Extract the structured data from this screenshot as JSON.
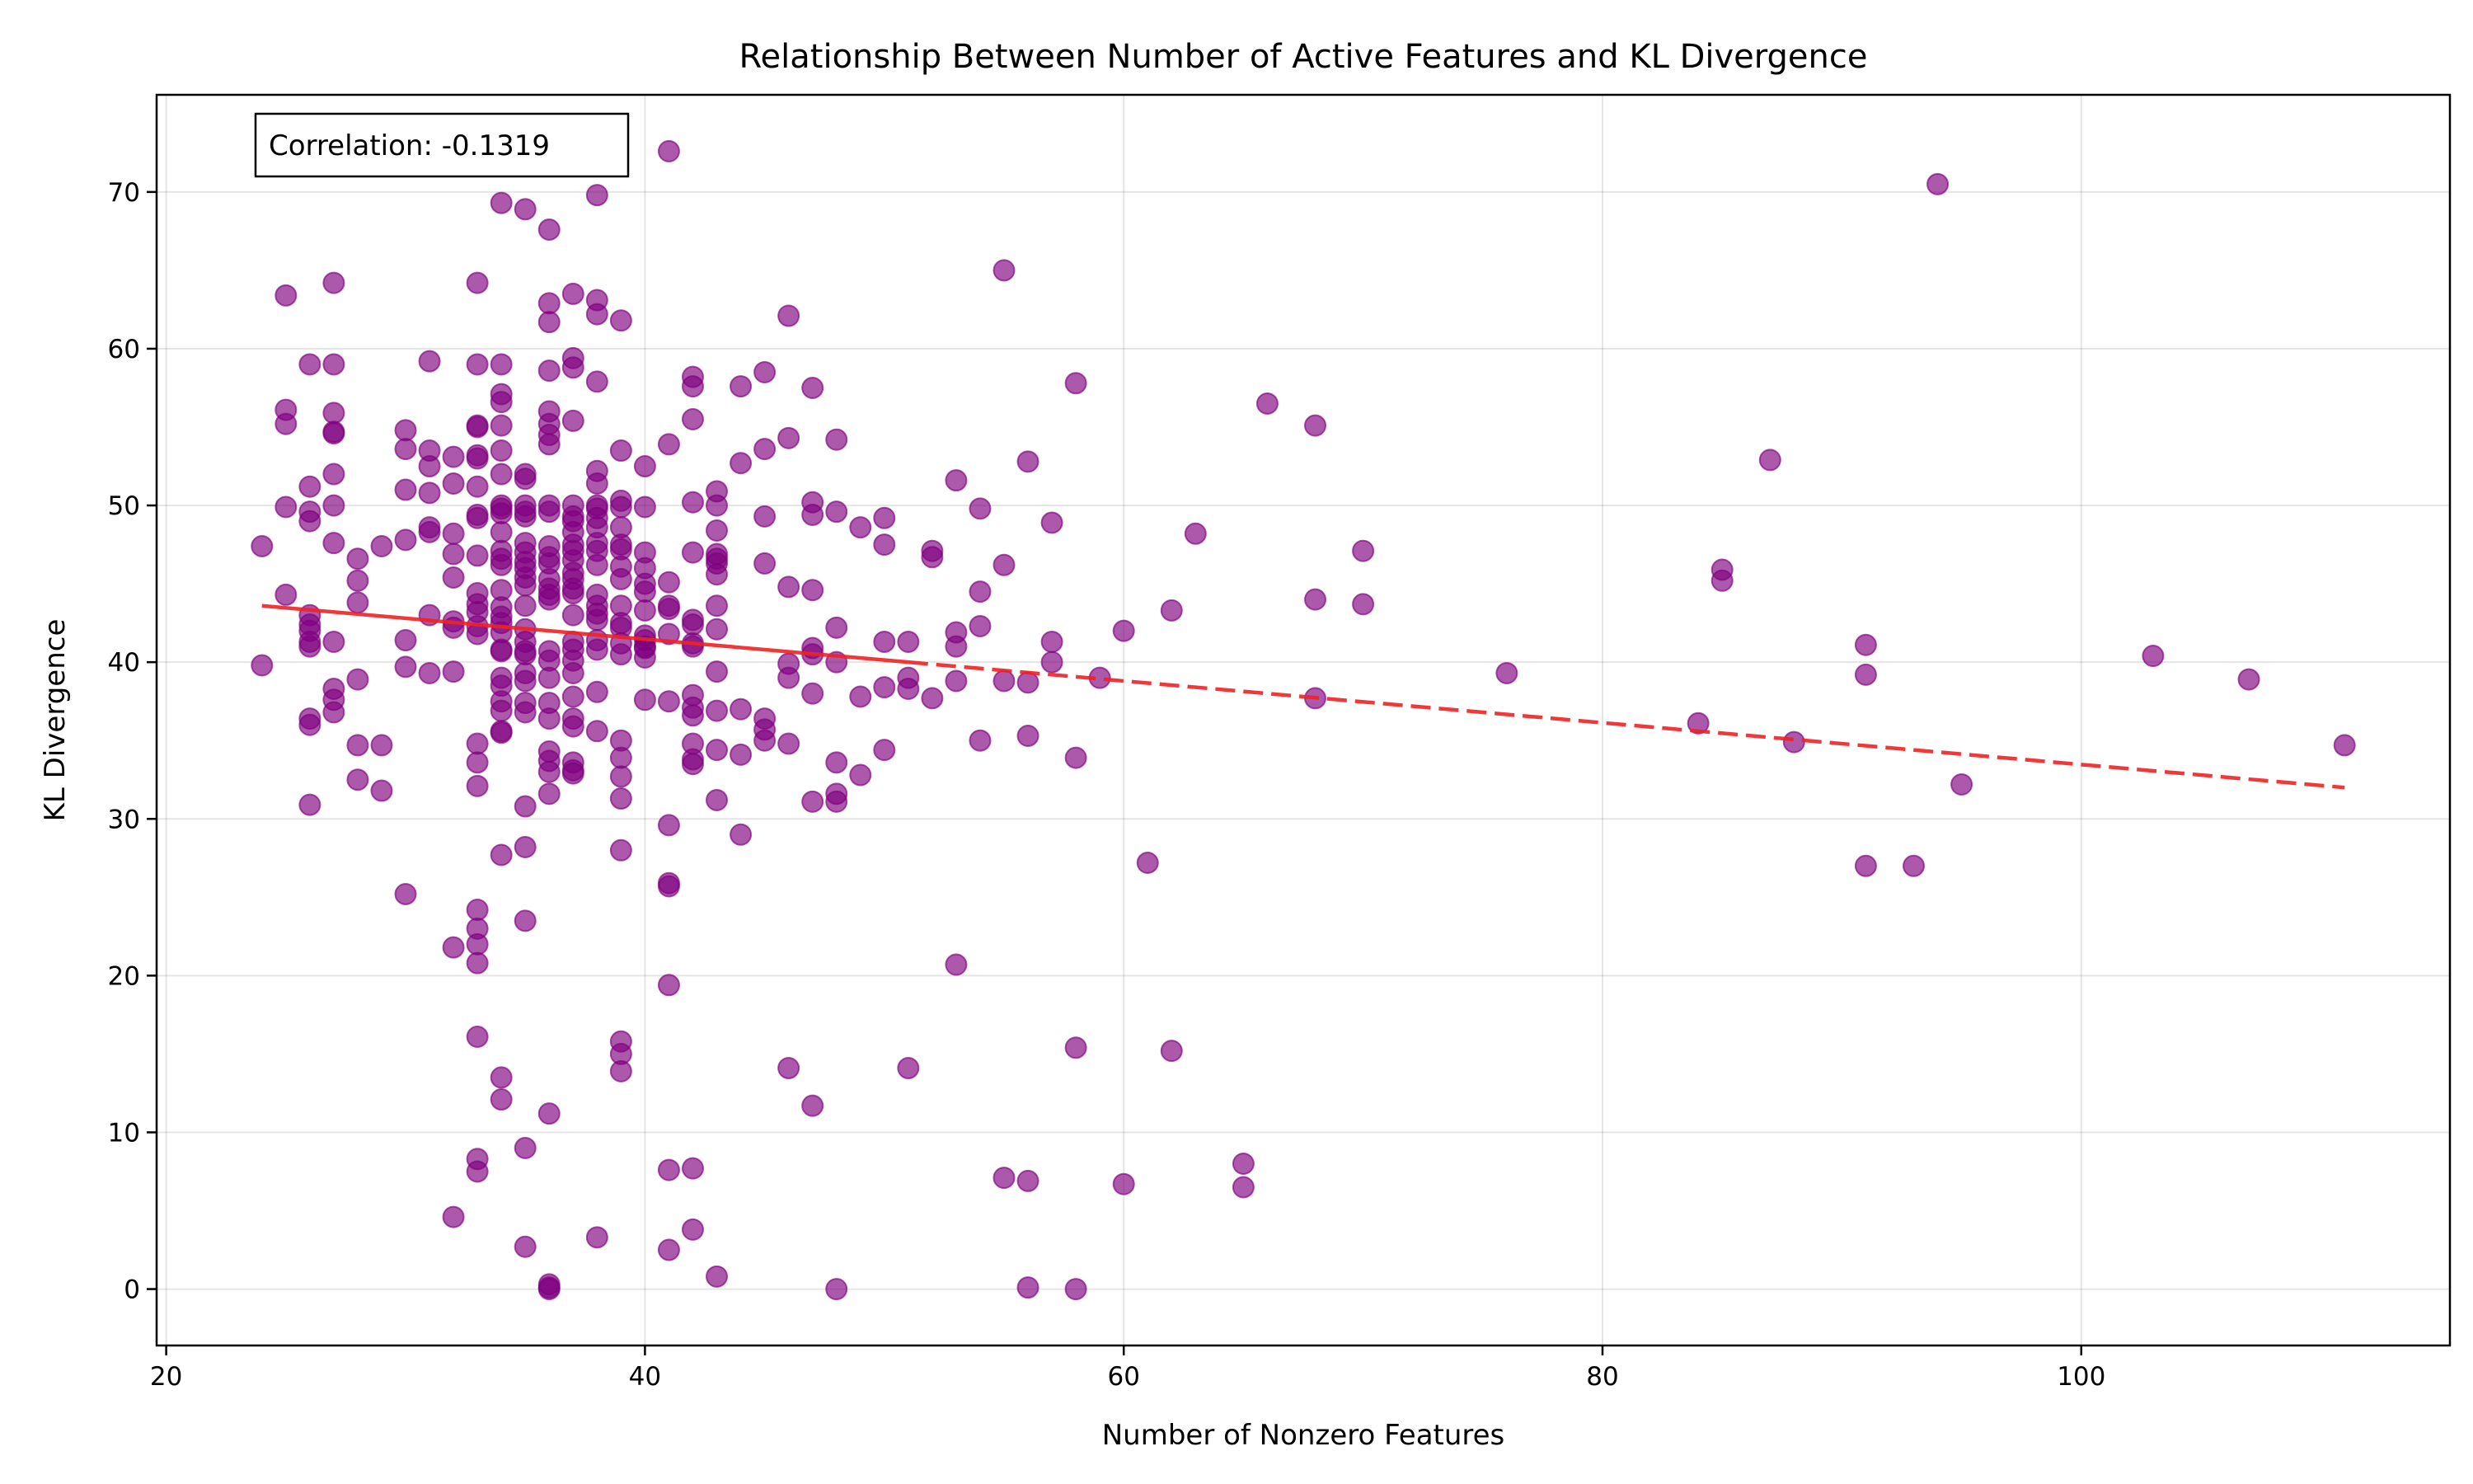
{
  "chart_data": {
    "type": "scatter",
    "title": "Relationship Between Number of Active Features and KL Divergence",
    "xlabel": "Number of Nonzero Features",
    "ylabel": "KL Divergence",
    "xlim": [
      19.6,
      115.4
    ],
    "ylim": [
      -3.6,
      76.2
    ],
    "xticks": [
      20,
      40,
      60,
      80,
      100
    ],
    "yticks": [
      0,
      10,
      20,
      30,
      40,
      50,
      60,
      70
    ],
    "grid": true,
    "annotation": "Correlation: -0.1319",
    "annotation_position": "top-left",
    "point_color": "#800080",
    "point_alpha": 0.65,
    "trend_color": "#ee2222",
    "trend_line": {
      "x": [
        24,
        111
      ],
      "y": [
        43.6,
        32.0
      ],
      "style": "solid from 24 to 51, dashed from 51 to 111",
      "solid_until_x": 51
    },
    "points": [
      [
        24,
        47.4
      ],
      [
        24,
        39.8
      ],
      [
        25,
        63.4
      ],
      [
        25,
        56.1
      ],
      [
        25,
        55.2
      ],
      [
        25,
        49.9
      ],
      [
        25,
        44.3
      ],
      [
        26,
        59.0
      ],
      [
        26,
        51.2
      ],
      [
        26,
        49.6
      ],
      [
        26,
        49.0
      ],
      [
        26,
        43.0
      ],
      [
        26,
        42.4
      ],
      [
        26,
        42.0
      ],
      [
        26,
        41.0
      ],
      [
        26,
        41.3
      ],
      [
        26,
        36.4
      ],
      [
        26,
        36.0
      ],
      [
        26,
        30.9
      ],
      [
        27,
        64.2
      ],
      [
        27,
        59.0
      ],
      [
        27,
        55.9
      ],
      [
        27,
        54.7
      ],
      [
        27,
        54.6
      ],
      [
        27,
        52.0
      ],
      [
        27,
        50.0
      ],
      [
        27,
        47.6
      ],
      [
        27,
        41.3
      ],
      [
        27,
        38.3
      ],
      [
        27,
        37.6
      ],
      [
        27,
        36.8
      ],
      [
        28,
        46.6
      ],
      [
        28,
        45.2
      ],
      [
        28,
        43.8
      ],
      [
        28,
        38.9
      ],
      [
        28,
        34.7
      ],
      [
        28,
        32.5
      ],
      [
        29,
        47.4
      ],
      [
        29,
        34.7
      ],
      [
        29,
        31.8
      ],
      [
        30,
        54.8
      ],
      [
        30,
        53.6
      ],
      [
        30,
        51.0
      ],
      [
        30,
        47.8
      ],
      [
        30,
        41.4
      ],
      [
        30,
        39.7
      ],
      [
        30,
        25.2
      ],
      [
        31,
        59.2
      ],
      [
        31,
        53.5
      ],
      [
        31,
        52.5
      ],
      [
        31,
        50.8
      ],
      [
        31,
        48.6
      ],
      [
        31,
        48.3
      ],
      [
        31,
        43.0
      ],
      [
        31,
        39.3
      ],
      [
        32,
        53.1
      ],
      [
        32,
        51.4
      ],
      [
        32,
        48.2
      ],
      [
        32,
        46.9
      ],
      [
        32,
        45.4
      ],
      [
        32,
        42.6
      ],
      [
        32,
        42.2
      ],
      [
        32,
        39.4
      ],
      [
        32,
        21.8
      ],
      [
        32,
        4.6
      ],
      [
        33,
        64.2
      ],
      [
        33,
        59.0
      ],
      [
        33,
        55.1
      ],
      [
        33,
        55.0
      ],
      [
        33,
        53.2
      ],
      [
        33,
        53.0
      ],
      [
        33,
        51.2
      ],
      [
        33,
        49.4
      ],
      [
        33,
        49.2
      ],
      [
        33,
        46.8
      ],
      [
        33,
        44.4
      ],
      [
        33,
        43.7
      ],
      [
        33,
        43.2
      ],
      [
        33,
        42.3
      ],
      [
        33,
        41.8
      ],
      [
        33,
        34.8
      ],
      [
        33,
        33.6
      ],
      [
        33,
        32.1
      ],
      [
        33,
        24.2
      ],
      [
        33,
        23.0
      ],
      [
        33,
        22.0
      ],
      [
        33,
        20.8
      ],
      [
        33,
        16.1
      ],
      [
        33,
        8.3
      ],
      [
        33,
        7.5
      ],
      [
        34,
        69.3
      ],
      [
        34,
        59.0
      ],
      [
        34,
        57.1
      ],
      [
        34,
        56.6
      ],
      [
        34,
        55.1
      ],
      [
        34,
        53.5
      ],
      [
        34,
        52.0
      ],
      [
        34,
        50.0
      ],
      [
        34,
        49.8
      ],
      [
        34,
        49.5
      ],
      [
        34,
        48.3
      ],
      [
        34,
        47.1
      ],
      [
        34,
        46.6
      ],
      [
        34,
        46.2
      ],
      [
        34,
        44.6
      ],
      [
        34,
        43.5
      ],
      [
        34,
        42.9
      ],
      [
        34,
        42.5
      ],
      [
        34,
        41.9
      ],
      [
        34,
        40.8
      ],
      [
        34,
        40.7
      ],
      [
        34,
        39.0
      ],
      [
        34,
        38.5
      ],
      [
        34,
        37.5
      ],
      [
        34,
        36.9
      ],
      [
        34,
        35.5
      ],
      [
        34,
        35.6
      ],
      [
        34,
        27.7
      ],
      [
        34,
        13.5
      ],
      [
        34,
        12.1
      ],
      [
        35,
        68.9
      ],
      [
        35,
        52.0
      ],
      [
        35,
        51.7
      ],
      [
        35,
        50.0
      ],
      [
        35,
        49.6
      ],
      [
        35,
        49.3
      ],
      [
        35,
        47.6
      ],
      [
        35,
        47.0
      ],
      [
        35,
        46.4
      ],
      [
        35,
        46.0
      ],
      [
        35,
        45.4
      ],
      [
        35,
        44.9
      ],
      [
        35,
        43.6
      ],
      [
        35,
        42.1
      ],
      [
        35,
        41.3
      ],
      [
        35,
        40.7
      ],
      [
        35,
        40.5
      ],
      [
        35,
        39.3
      ],
      [
        35,
        38.8
      ],
      [
        35,
        37.4
      ],
      [
        35,
        36.8
      ],
      [
        35,
        30.8
      ],
      [
        35,
        28.2
      ],
      [
        35,
        23.5
      ],
      [
        35,
        9.0
      ],
      [
        35,
        2.7
      ],
      [
        36,
        67.6
      ],
      [
        36,
        62.9
      ],
      [
        36,
        61.7
      ],
      [
        36,
        58.6
      ],
      [
        36,
        56.0
      ],
      [
        36,
        55.2
      ],
      [
        36,
        54.5
      ],
      [
        36,
        53.9
      ],
      [
        36,
        50.0
      ],
      [
        36,
        49.6
      ],
      [
        36,
        47.4
      ],
      [
        36,
        46.7
      ],
      [
        36,
        46.3
      ],
      [
        36,
        45.3
      ],
      [
        36,
        44.7
      ],
      [
        36,
        44.3
      ],
      [
        36,
        44.0
      ],
      [
        36,
        40.7
      ],
      [
        36,
        40.1
      ],
      [
        36,
        39.0
      ],
      [
        36,
        37.4
      ],
      [
        36,
        36.4
      ],
      [
        36,
        34.3
      ],
      [
        36,
        33.7
      ],
      [
        36,
        33.0
      ],
      [
        36,
        31.6
      ],
      [
        36,
        11.2
      ],
      [
        36,
        0.3
      ],
      [
        36,
        0.1
      ],
      [
        36,
        0.0
      ],
      [
        37,
        63.5
      ],
      [
        37,
        59.4
      ],
      [
        37,
        58.8
      ],
      [
        37,
        55.4
      ],
      [
        37,
        50.0
      ],
      [
        37,
        49.3
      ],
      [
        37,
        49.0
      ],
      [
        37,
        48.3
      ],
      [
        37,
        47.5
      ],
      [
        37,
        47.1
      ],
      [
        37,
        46.5
      ],
      [
        37,
        45.7
      ],
      [
        37,
        45.3
      ],
      [
        37,
        44.7
      ],
      [
        37,
        44.4
      ],
      [
        37,
        43.0
      ],
      [
        37,
        41.3
      ],
      [
        37,
        40.8
      ],
      [
        37,
        40.1
      ],
      [
        37,
        39.3
      ],
      [
        37,
        37.8
      ],
      [
        37,
        36.4
      ],
      [
        37,
        35.9
      ],
      [
        37,
        33.6
      ],
      [
        37,
        33.1
      ],
      [
        37,
        32.9
      ],
      [
        38,
        69.8
      ],
      [
        38,
        63.1
      ],
      [
        38,
        62.2
      ],
      [
        38,
        57.9
      ],
      [
        38,
        52.2
      ],
      [
        38,
        51.4
      ],
      [
        38,
        50.0
      ],
      [
        38,
        49.8
      ],
      [
        38,
        49.2
      ],
      [
        38,
        48.6
      ],
      [
        38,
        47.6
      ],
      [
        38,
        47.1
      ],
      [
        38,
        46.2
      ],
      [
        38,
        44.3
      ],
      [
        38,
        43.6
      ],
      [
        38,
        43.1
      ],
      [
        38,
        42.7
      ],
      [
        38,
        41.4
      ],
      [
        38,
        40.8
      ],
      [
        38,
        38.1
      ],
      [
        38,
        35.6
      ],
      [
        38,
        3.3
      ],
      [
        39,
        61.8
      ],
      [
        39,
        53.5
      ],
      [
        39,
        50.3
      ],
      [
        39,
        49.9
      ],
      [
        39,
        48.6
      ],
      [
        39,
        47.5
      ],
      [
        39,
        47.2
      ],
      [
        39,
        46.1
      ],
      [
        39,
        45.3
      ],
      [
        39,
        43.6
      ],
      [
        39,
        42.5
      ],
      [
        39,
        42.2
      ],
      [
        39,
        41.2
      ],
      [
        39,
        40.5
      ],
      [
        39,
        35.0
      ],
      [
        39,
        33.9
      ],
      [
        39,
        32.7
      ],
      [
        39,
        31.3
      ],
      [
        39,
        28.0
      ],
      [
        39,
        15.8
      ],
      [
        39,
        15.0
      ],
      [
        39,
        13.9
      ],
      [
        40,
        52.5
      ],
      [
        40,
        49.9
      ],
      [
        40,
        47.0
      ],
      [
        40,
        46.0
      ],
      [
        40,
        45.0
      ],
      [
        40,
        44.5
      ],
      [
        40,
        43.3
      ],
      [
        40,
        41.7
      ],
      [
        40,
        41.4
      ],
      [
        40,
        41.0
      ],
      [
        40,
        40.9
      ],
      [
        40,
        40.3
      ],
      [
        40,
        37.6
      ],
      [
        41,
        72.6
      ],
      [
        41,
        53.9
      ],
      [
        41,
        45.1
      ],
      [
        41,
        43.6
      ],
      [
        41,
        43.4
      ],
      [
        41,
        41.8
      ],
      [
        41,
        37.5
      ],
      [
        41,
        29.6
      ],
      [
        41,
        25.9
      ],
      [
        41,
        25.7
      ],
      [
        41,
        19.4
      ],
      [
        41,
        7.6
      ],
      [
        41,
        2.5
      ],
      [
        42,
        58.2
      ],
      [
        42,
        57.6
      ],
      [
        42,
        55.5
      ],
      [
        42,
        50.2
      ],
      [
        42,
        47.0
      ],
      [
        42,
        42.7
      ],
      [
        42,
        42.4
      ],
      [
        42,
        41.2
      ],
      [
        42,
        41.0
      ],
      [
        42,
        37.9
      ],
      [
        42,
        37.1
      ],
      [
        42,
        36.6
      ],
      [
        42,
        34.8
      ],
      [
        42,
        33.8
      ],
      [
        42,
        33.5
      ],
      [
        42,
        7.7
      ],
      [
        42,
        3.8
      ],
      [
        43,
        50.9
      ],
      [
        43,
        50.0
      ],
      [
        43,
        48.4
      ],
      [
        43,
        46.9
      ],
      [
        43,
        46.6
      ],
      [
        43,
        46.3
      ],
      [
        43,
        45.6
      ],
      [
        43,
        43.6
      ],
      [
        43,
        42.1
      ],
      [
        43,
        39.4
      ],
      [
        43,
        36.9
      ],
      [
        43,
        34.4
      ],
      [
        43,
        31.2
      ],
      [
        43,
        0.8
      ],
      [
        44,
        57.6
      ],
      [
        44,
        52.7
      ],
      [
        44,
        37.0
      ],
      [
        44,
        34.1
      ],
      [
        44,
        29.0
      ],
      [
        45,
        58.5
      ],
      [
        45,
        53.6
      ],
      [
        45,
        49.3
      ],
      [
        45,
        46.3
      ],
      [
        45,
        36.4
      ],
      [
        45,
        35.7
      ],
      [
        45,
        35.0
      ],
      [
        46,
        62.1
      ],
      [
        46,
        54.3
      ],
      [
        46,
        44.8
      ],
      [
        46,
        39.9
      ],
      [
        46,
        39.0
      ],
      [
        46,
        34.8
      ],
      [
        46,
        14.1
      ],
      [
        47,
        57.5
      ],
      [
        47,
        50.2
      ],
      [
        47,
        49.4
      ],
      [
        47,
        44.6
      ],
      [
        47,
        40.9
      ],
      [
        47,
        40.5
      ],
      [
        47,
        38.0
      ],
      [
        47,
        31.1
      ],
      [
        47,
        11.7
      ],
      [
        48,
        54.2
      ],
      [
        48,
        49.6
      ],
      [
        48,
        42.2
      ],
      [
        48,
        40.0
      ],
      [
        48,
        33.6
      ],
      [
        48,
        31.6
      ],
      [
        48,
        31.1
      ],
      [
        48,
        0.0
      ],
      [
        49,
        48.6
      ],
      [
        49,
        37.8
      ],
      [
        49,
        32.8
      ],
      [
        50,
        49.2
      ],
      [
        50,
        47.5
      ],
      [
        50,
        41.3
      ],
      [
        50,
        38.4
      ],
      [
        50,
        34.4
      ],
      [
        51,
        41.3
      ],
      [
        51,
        39.0
      ],
      [
        51,
        38.3
      ],
      [
        51,
        14.1
      ],
      [
        52,
        47.1
      ],
      [
        52,
        46.7
      ],
      [
        52,
        37.7
      ],
      [
        53,
        51.6
      ],
      [
        53,
        41.9
      ],
      [
        53,
        41.0
      ],
      [
        53,
        38.8
      ],
      [
        53,
        20.7
      ],
      [
        54,
        49.8
      ],
      [
        54,
        44.5
      ],
      [
        54,
        42.3
      ],
      [
        54,
        35.0
      ],
      [
        55,
        65.0
      ],
      [
        55,
        46.2
      ],
      [
        55,
        38.8
      ],
      [
        55,
        7.1
      ],
      [
        56,
        52.8
      ],
      [
        56,
        38.7
      ],
      [
        56,
        35.3
      ],
      [
        56,
        6.9
      ],
      [
        56,
        0.1
      ],
      [
        57,
        48.9
      ],
      [
        57,
        41.3
      ],
      [
        57,
        40.0
      ],
      [
        58,
        57.8
      ],
      [
        58,
        33.9
      ],
      [
        58,
        15.4
      ],
      [
        58,
        0.0
      ],
      [
        59,
        39.0
      ],
      [
        60,
        42.0
      ],
      [
        60,
        6.7
      ],
      [
        61,
        27.2
      ],
      [
        62,
        43.3
      ],
      [
        62,
        15.2
      ],
      [
        63,
        48.2
      ],
      [
        65,
        8.0
      ],
      [
        65,
        6.5
      ],
      [
        66,
        56.5
      ],
      [
        68,
        55.1
      ],
      [
        68,
        44.0
      ],
      [
        68,
        37.7
      ],
      [
        70,
        47.1
      ],
      [
        70,
        43.7
      ],
      [
        76,
        39.3
      ],
      [
        84,
        36.1
      ],
      [
        85,
        45.9
      ],
      [
        85,
        45.2
      ],
      [
        87,
        52.9
      ],
      [
        88,
        34.9
      ],
      [
        91,
        41.1
      ],
      [
        91,
        39.2
      ],
      [
        91,
        27.0
      ],
      [
        93,
        27.0
      ],
      [
        94,
        70.5
      ],
      [
        95,
        32.2
      ],
      [
        103,
        40.4
      ],
      [
        107,
        38.9
      ],
      [
        111,
        34.7
      ]
    ]
  }
}
